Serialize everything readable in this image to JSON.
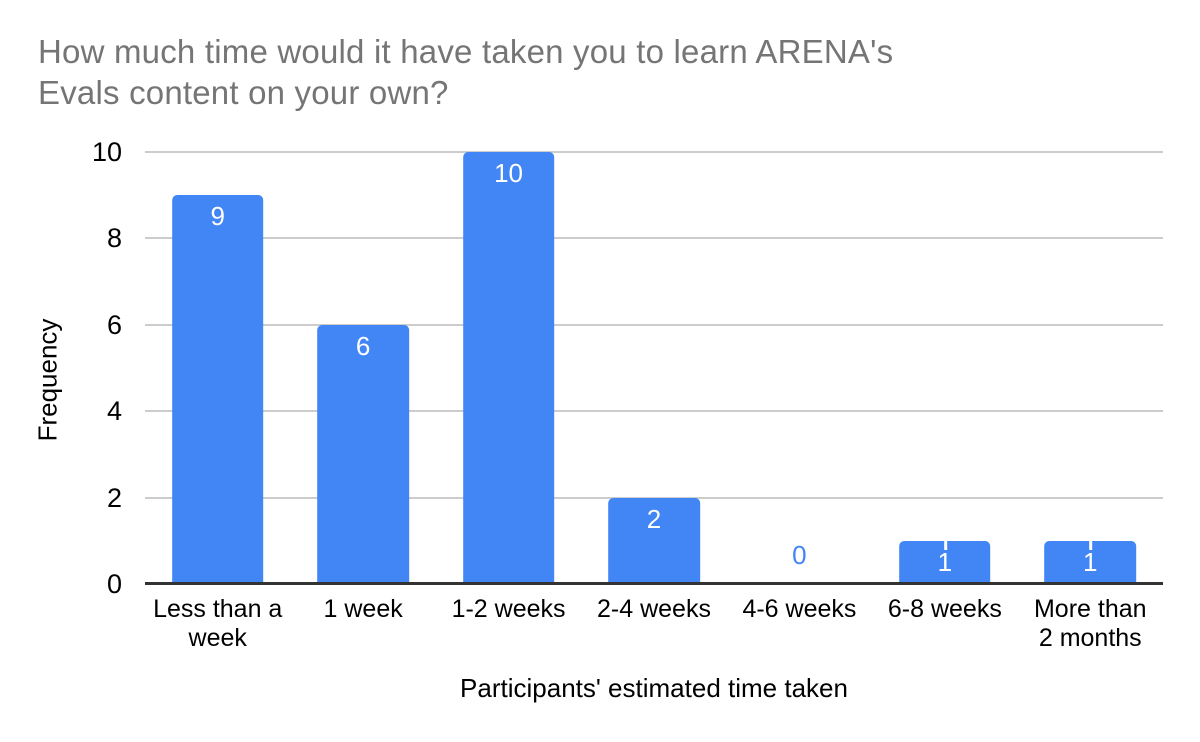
{
  "header": {
    "title_line1": "How much time would it have taken you to learn ARENA's",
    "title_line2": "Evals content on your own?"
  },
  "chart_data": {
    "type": "bar",
    "title": "How much time would it have taken you to learn ARENA's Evals content on your own?",
    "categories": [
      "Less than a week",
      "1 week",
      "1-2 weeks",
      "2-4 weeks",
      "4-6 weeks",
      "6-8 weeks",
      "More than 2 months"
    ],
    "category_label_lines": [
      [
        "Less than a",
        "week"
      ],
      [
        "1 week"
      ],
      [
        "1-2 weeks"
      ],
      [
        "2-4 weeks"
      ],
      [
        "4-6 weeks"
      ],
      [
        "6-8 weeks"
      ],
      [
        "More than",
        "2 months"
      ]
    ],
    "values": [
      9,
      6,
      10,
      2,
      0,
      1,
      1
    ],
    "bar_value_labels": [
      "9",
      "6",
      "10",
      "2",
      "0",
      "1",
      "1"
    ],
    "xlabel": "Participants' estimated time taken",
    "ylabel": "Frequency",
    "ylim": [
      0,
      10
    ],
    "yticks": [
      0,
      2,
      4,
      6,
      8,
      10
    ],
    "grid": true,
    "legend_position": "none"
  },
  "colors": {
    "background": "#ffffff",
    "bar": "#4285f4",
    "title_text": "#757575",
    "axis_text": "#000000",
    "gridline": "#cccccc",
    "axis_line": "#333333",
    "bar_value_label": "#ffffff",
    "zero_value_label": "#4285f4"
  }
}
